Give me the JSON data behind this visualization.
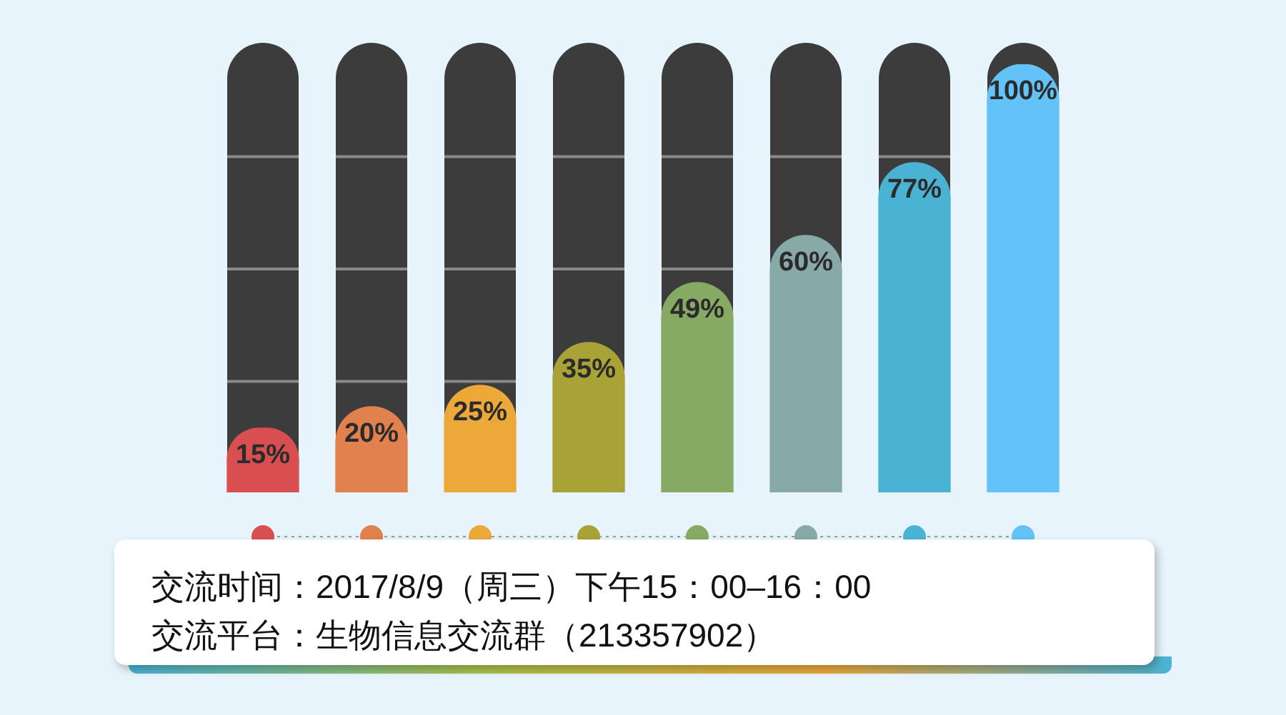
{
  "chart_data": {
    "type": "bar",
    "categories": [
      null,
      null,
      null,
      null,
      null,
      null,
      null,
      null
    ],
    "values": [
      15,
      20,
      25,
      35,
      49,
      60,
      77,
      100
    ],
    "colors": [
      "#d94f4f",
      "#e0814e",
      "#eda83a",
      "#a9a337",
      "#86aa64",
      "#87aaa8",
      "#4ab3d4",
      "#63c2f7"
    ],
    "value_labels": [
      "15%",
      "20%",
      "25%",
      "35%",
      "49%",
      "60%",
      "77%",
      "100%"
    ],
    "ylim": [
      0,
      100
    ],
    "tick_labels": false,
    "annotations": [
      "交流时间：2017/8/9（周三）下午15：00–16：00",
      "交流平台：生物信息交流群（213357902）"
    ]
  }
}
